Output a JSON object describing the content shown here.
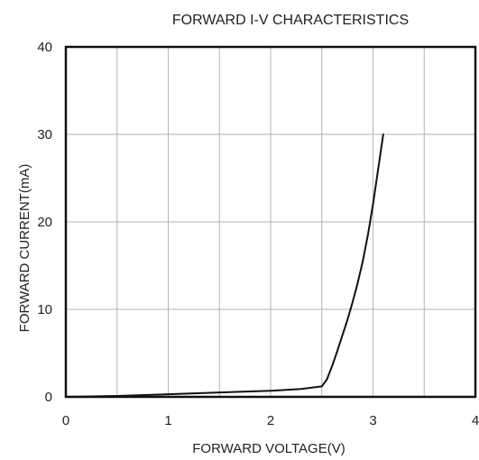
{
  "chart_data": {
    "type": "line",
    "title": "FORWARD I-V CHARACTERISTICS",
    "xlabel": "FORWARD VOLTAGE(V)",
    "ylabel": "FORWARD CURRENT(mA)",
    "xlim": [
      0,
      4
    ],
    "ylim": [
      0,
      40
    ],
    "x_ticks": [
      "0",
      "1",
      "2",
      "3",
      "4"
    ],
    "y_ticks": [
      "0",
      "10",
      "20",
      "30",
      "40"
    ],
    "grid": true,
    "legend": "none",
    "series": [
      {
        "x": [
          0.0,
          0.5,
          1.0,
          1.5,
          2.0,
          2.3,
          2.5,
          2.55,
          2.6,
          2.65,
          2.7,
          2.75,
          2.8,
          2.85,
          2.9,
          2.95,
          3.0,
          3.05,
          3.1
        ],
        "y": [
          0.0,
          0.1,
          0.3,
          0.5,
          0.7,
          0.9,
          1.2,
          2.0,
          3.5,
          5.2,
          7.0,
          8.8,
          10.8,
          13.0,
          15.5,
          18.5,
          22.0,
          26.0,
          30.0
        ]
      }
    ]
  }
}
